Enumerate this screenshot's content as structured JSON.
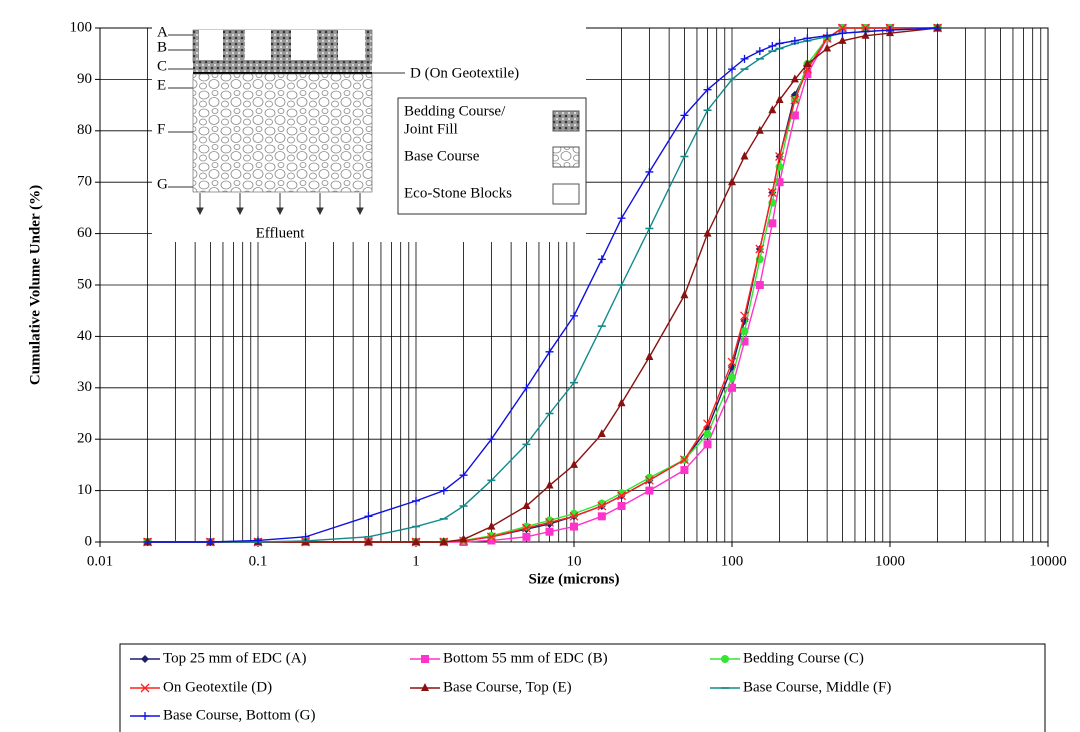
{
  "chart_data": {
    "type": "line",
    "xlabel": "Size (microns)",
    "ylabel": "Cumulative Volume Under (%)",
    "xscale": "log",
    "xlim": [
      0.01,
      10000
    ],
    "xticks": [
      0.01,
      0.1,
      1,
      10,
      100,
      1000,
      10000
    ],
    "ylim": [
      0,
      100
    ],
    "yticks": [
      0,
      10,
      20,
      30,
      40,
      50,
      60,
      70,
      80,
      90,
      100
    ],
    "grid": true,
    "minor_grid": true,
    "legend": "bottom",
    "x": [
      0.02,
      0.05,
      0.1,
      0.2,
      0.5,
      1,
      1.5,
      2,
      3,
      5,
      7,
      10,
      15,
      20,
      30,
      50,
      70,
      100,
      120,
      150,
      180,
      200,
      250,
      300,
      400,
      500,
      700,
      1000,
      2000
    ],
    "series": [
      {
        "name": "Top 25 mm of EDC (A)",
        "color": "#1f1f6e",
        "marker": "diamond",
        "values": [
          0,
          0,
          0,
          0,
          0,
          0,
          0,
          0.2,
          1,
          2.5,
          3.5,
          5,
          7,
          9,
          12,
          16,
          22,
          34,
          43,
          57,
          68,
          75,
          87,
          92,
          98,
          100,
          100,
          100,
          100
        ]
      },
      {
        "name": "Bottom 55 mm of EDC (B)",
        "color": "#ff33cc",
        "marker": "square",
        "values": [
          0,
          0,
          0,
          0,
          0,
          0,
          0,
          0,
          0.3,
          1,
          2,
          3,
          5,
          7,
          10,
          14,
          19,
          30,
          39,
          50,
          62,
          70,
          83,
          91,
          98,
          100,
          100,
          100,
          100
        ]
      },
      {
        "name": "Bedding Course (C)",
        "color": "#33e633",
        "marker": "circle",
        "values": [
          0,
          0,
          0,
          0,
          0,
          0,
          0,
          0.3,
          1.2,
          3,
          4.2,
          5.5,
          7.5,
          9.5,
          12.5,
          16,
          21,
          32,
          41,
          55,
          66,
          73,
          86,
          93,
          98,
          100,
          100,
          100,
          100
        ]
      },
      {
        "name": "On Geotextile (D)",
        "color": "#ff2020",
        "marker": "x",
        "values": [
          0,
          0,
          0,
          0,
          0,
          0,
          0,
          0.2,
          1,
          2.7,
          3.8,
          5,
          7,
          9,
          12,
          16,
          23,
          35,
          44,
          57,
          68,
          75,
          86,
          92,
          98,
          100,
          100,
          100,
          100
        ]
      },
      {
        "name": "Base Course, Top (E)",
        "color": "#8b1010",
        "marker": "triangle",
        "values": [
          0,
          0,
          0,
          0,
          0,
          0,
          0,
          0.5,
          3,
          7,
          11,
          15,
          21,
          27,
          36,
          48,
          60,
          70,
          75,
          80,
          84,
          86,
          90,
          93,
          96,
          97.5,
          98.5,
          99,
          100
        ]
      },
      {
        "name": "Base Course, Middle (F)",
        "color": "#108a8a",
        "marker": "dash",
        "values": [
          0,
          0,
          0,
          0.2,
          1,
          3,
          4.5,
          7,
          12,
          19,
          25,
          31,
          42,
          50,
          61,
          75,
          84,
          90,
          92,
          94,
          95.5,
          96,
          97,
          97.5,
          98.3,
          99,
          99.3,
          99.6,
          100
        ]
      },
      {
        "name": "Base Course, Bottom (G)",
        "color": "#1010e0",
        "marker": "plus",
        "values": [
          0,
          0,
          0.3,
          1,
          5,
          8,
          10,
          13,
          20,
          30,
          37,
          44,
          55,
          63,
          72,
          83,
          88,
          92,
          94,
          95.5,
          96.5,
          97,
          97.5,
          98,
          98.5,
          99,
          99.3,
          99.6,
          100
        ]
      }
    ],
    "inset": {
      "layers": [
        "A",
        "B",
        "C",
        "E",
        "F",
        "G"
      ],
      "geotextile": "D (On Geotextile)",
      "outflow": "Effluent",
      "key": [
        [
          "Bedding Course/",
          "Joint Fill"
        ],
        [
          "Base Course"
        ],
        [
          "Eco-Stone Blocks"
        ]
      ]
    }
  }
}
